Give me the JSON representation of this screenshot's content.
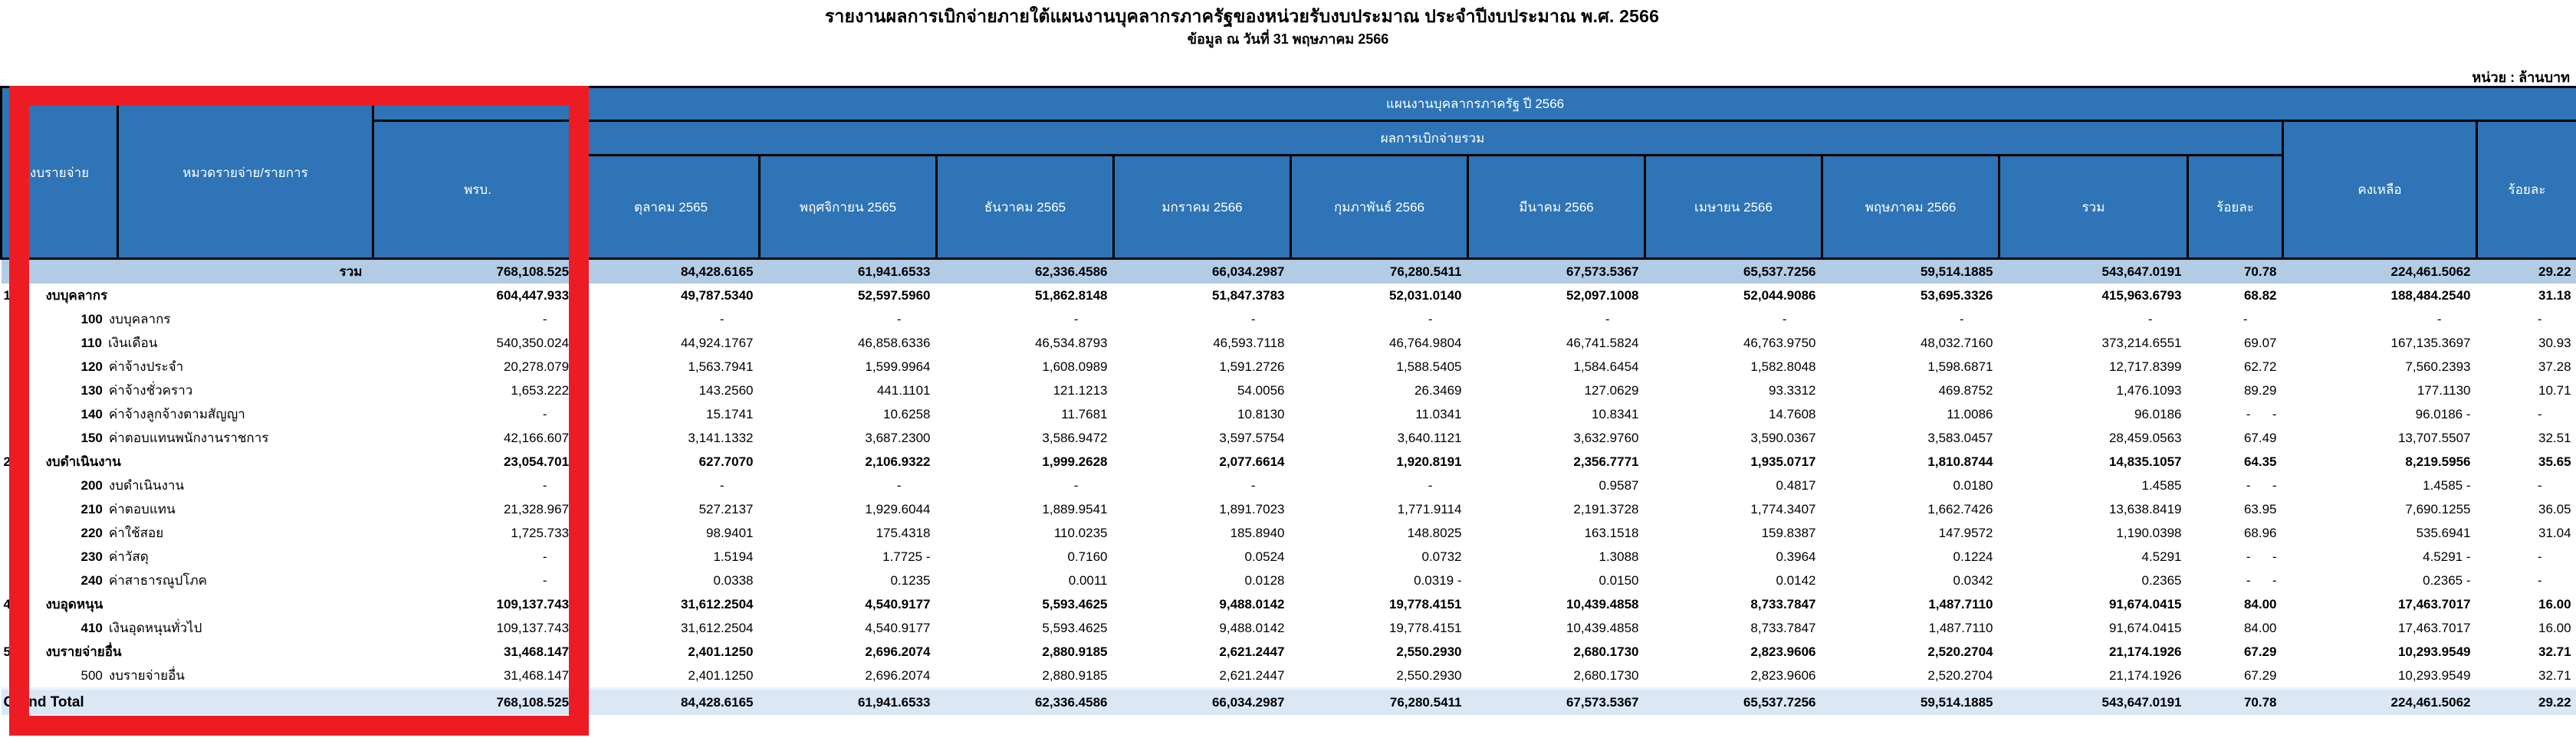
{
  "title": "รายงานผลการเบิกจ่ายภายใต้แผนงานบุคลากรภาครัฐของหน่วยรับงบประมาณ ประจำปีงบประมาณ พ.ศ. 2566",
  "subtitle": "ข้อมูล ณ วันที่ 31 พฤษภาคม 2566",
  "unit_label": "หน่วย : ล้านบาท",
  "annotation": {
    "highlight_color": "#ED1C24"
  },
  "table": {
    "header": {
      "expense_type": "งบรายจ่าย",
      "category": "หมวดรายจ่าย/รายการ",
      "act": "พรบ.",
      "plan_title": "แผนงานบุคลากรภาครัฐ ปี 2566",
      "disbursement_total": "ผลการเบิกจ่ายรวม",
      "months": [
        "ตุลาคม 2565",
        "พฤศจิกายน 2565",
        "ธันวาคม 2565",
        "มกราคม 2566",
        "กุมภาพันธ์ 2566",
        "มีนาคม 2566",
        "เมษายน 2566",
        "พฤษภาคม 2566"
      ],
      "sum": "รวม",
      "percent": "ร้อยละ",
      "remaining": "คงเหลือ",
      "percent2": "ร้อยละ"
    },
    "rows": [
      {
        "type": "total",
        "num": "",
        "name": "รวม",
        "values": [
          "768,108.5253",
          "84,428.6165",
          "61,941.6533",
          "62,336.4586",
          "66,034.2987",
          "76,280.5411",
          "67,573.5367",
          "65,537.7256",
          "59,514.1885",
          "543,647.0191",
          "70.78",
          "224,461.5062",
          "29.22"
        ]
      },
      {
        "type": "group",
        "num": "1",
        "name": "งบบุคลากร",
        "values": [
          "604,447.9333",
          "49,787.5340",
          "52,597.5960",
          "51,862.8148",
          "51,847.3783",
          "52,031.0140",
          "52,097.1008",
          "52,044.9086",
          "53,695.3326",
          "415,963.6793",
          "68.82",
          "188,484.2540",
          "31.18"
        ]
      },
      {
        "type": "detail",
        "num": "100",
        "name": "งบบุคลากร",
        "values": [
          "-",
          "-",
          "-",
          "-",
          "-",
          "-",
          "-",
          "-",
          "-",
          "-",
          "-",
          "-",
          "-"
        ]
      },
      {
        "type": "detail",
        "num": "110",
        "name": "เงินเดือน",
        "values": [
          "540,350.0248",
          "44,924.1767",
          "46,858.6336",
          "46,534.8793",
          "46,593.7118",
          "46,764.9804",
          "46,741.5824",
          "46,763.9750",
          "48,032.7160",
          "373,214.6551",
          "69.07",
          "167,135.3697",
          "30.93"
        ]
      },
      {
        "type": "detail",
        "num": "120",
        "name": "ค่าจ้างประจำ",
        "values": [
          "20,278.0792",
          "1,563.7941",
          "1,599.9964",
          "1,608.0989",
          "1,591.2726",
          "1,588.5405",
          "1,584.6454",
          "1,582.8048",
          "1,598.6871",
          "12,717.8399",
          "62.72",
          "7,560.2393",
          "37.28"
        ]
      },
      {
        "type": "detail",
        "num": "130",
        "name": "ค่าจ้างชั่วคราว",
        "values": [
          "1,653.2223",
          "143.2560",
          "441.1101",
          "121.1213",
          "54.0056",
          "26.3469",
          "127.0629",
          "93.3312",
          "469.8752",
          "1,476.1093",
          "89.29",
          "177.1130",
          "10.71"
        ]
      },
      {
        "type": "detail",
        "num": "140",
        "name": "ค่าจ้างลูกจ้างตามสัญญา",
        "values": [
          "-",
          "15.1741",
          "10.6258",
          "11.7681",
          "10.8130",
          "11.0341",
          "10.8341",
          "14.7608",
          "11.0086",
          "96.0186",
          "-      -",
          "96.0186 -",
          "-"
        ]
      },
      {
        "type": "detail",
        "num": "150",
        "name": "ค่าตอบแทนพนักงานราชการ",
        "values": [
          "42,166.6070",
          "3,141.1332",
          "3,687.2300",
          "3,586.9472",
          "3,597.5754",
          "3,640.1121",
          "3,632.9760",
          "3,590.0367",
          "3,583.0457",
          "28,459.0563",
          "67.49",
          "13,707.5507",
          "32.51"
        ]
      },
      {
        "type": "group",
        "num": "2",
        "name": "งบดำเนินงาน",
        "values": [
          "23,054.7013",
          "627.7070",
          "2,106.9322",
          "1,999.2628",
          "2,077.6614",
          "1,920.8191",
          "2,356.7771",
          "1,935.0717",
          "1,810.8744",
          "14,835.1057",
          "64.35",
          "8,219.5956",
          "35.65"
        ]
      },
      {
        "type": "detail",
        "num": "200",
        "name": "งบดำเนินงาน",
        "values": [
          "-",
          "-",
          "-",
          "-",
          "-",
          "-",
          "0.9587",
          "0.4817",
          "0.0180",
          "1.4585",
          "-      -",
          "1.4585 -",
          "-"
        ]
      },
      {
        "type": "detail",
        "num": "210",
        "name": "ค่าตอบแทน",
        "values": [
          "21,328.9674",
          "527.2137",
          "1,929.6044",
          "1,889.9541",
          "1,891.7023",
          "1,771.9114",
          "2,191.3728",
          "1,774.3407",
          "1,662.7426",
          "13,638.8419",
          "63.95",
          "7,690.1255",
          "36.05"
        ]
      },
      {
        "type": "detail",
        "num": "220",
        "name": "ค่าใช้สอย",
        "values": [
          "1,725.7339",
          "98.9401",
          "175.4318",
          "110.0235",
          "185.8940",
          "148.8025",
          "163.1518",
          "159.8387",
          "147.9572",
          "1,190.0398",
          "68.96",
          "535.6941",
          "31.04"
        ]
      },
      {
        "type": "detail",
        "num": "230",
        "name": "ค่าวัสดุ",
        "values": [
          "-",
          "1.5194",
          "1.7725 -",
          "0.7160",
          "0.0524",
          "0.0732",
          "1.3088",
          "0.3964",
          "0.1224",
          "4.5291",
          "-      -",
          "4.5291 -",
          "-"
        ]
      },
      {
        "type": "detail",
        "num": "240",
        "name": "ค่าสาธารณูปโภค",
        "values": [
          "-",
          "0.0338",
          "0.1235",
          "0.0011",
          "0.0128",
          "0.0319 -",
          "0.0150",
          "0.0142",
          "0.0342",
          "0.2365",
          "-      -",
          "0.2365 -",
          "-"
        ]
      },
      {
        "type": "group",
        "num": "4",
        "name": "งบอุดหนุน",
        "values": [
          "109,137.7432",
          "31,612.2504",
          "4,540.9177",
          "5,593.4625",
          "9,488.0142",
          "19,778.4151",
          "10,439.4858",
          "8,733.7847",
          "1,487.7110",
          "91,674.0415",
          "84.00",
          "17,463.7017",
          "16.00"
        ]
      },
      {
        "type": "detail",
        "num": "410",
        "name": "เงินอุดหนุนทั่วไป",
        "values": [
          "109,137.7432",
          "31,612.2504",
          "4,540.9177",
          "5,593.4625",
          "9,488.0142",
          "19,778.4151",
          "10,439.4858",
          "8,733.7847",
          "1,487.7110",
          "91,674.0415",
          "84.00",
          "17,463.7017",
          "16.00"
        ]
      },
      {
        "type": "group",
        "num": "5",
        "name": "งบรายจ่ายอื่น",
        "values": [
          "31,468.1475",
          "2,401.1250",
          "2,696.2074",
          "2,880.9185",
          "2,621.2447",
          "2,550.2930",
          "2,680.1730",
          "2,823.9606",
          "2,520.2704",
          "21,174.1926",
          "67.29",
          "10,293.9549",
          "32.71"
        ]
      },
      {
        "type": "detail",
        "num": "500",
        "name": "งบรายจ่ายอื่น",
        "num_plain": true,
        "values": [
          "31,468.1475",
          "2,401.1250",
          "2,696.2074",
          "2,880.9185",
          "2,621.2447",
          "2,550.2930",
          "2,680.1730",
          "2,823.9606",
          "2,520.2704",
          "21,174.1926",
          "67.29",
          "10,293.9549",
          "32.71"
        ]
      },
      {
        "type": "grandtotal",
        "num": "",
        "name": "Grand Total",
        "values": [
          "768,108.5253",
          "84,428.6165",
          "61,941.6533",
          "62,336.4586",
          "66,034.2987",
          "76,280.5411",
          "67,573.5367",
          "65,537.7256",
          "59,514.1885",
          "543,647.0191",
          "70.78",
          "224,461.5062",
          "29.22"
        ]
      }
    ]
  }
}
